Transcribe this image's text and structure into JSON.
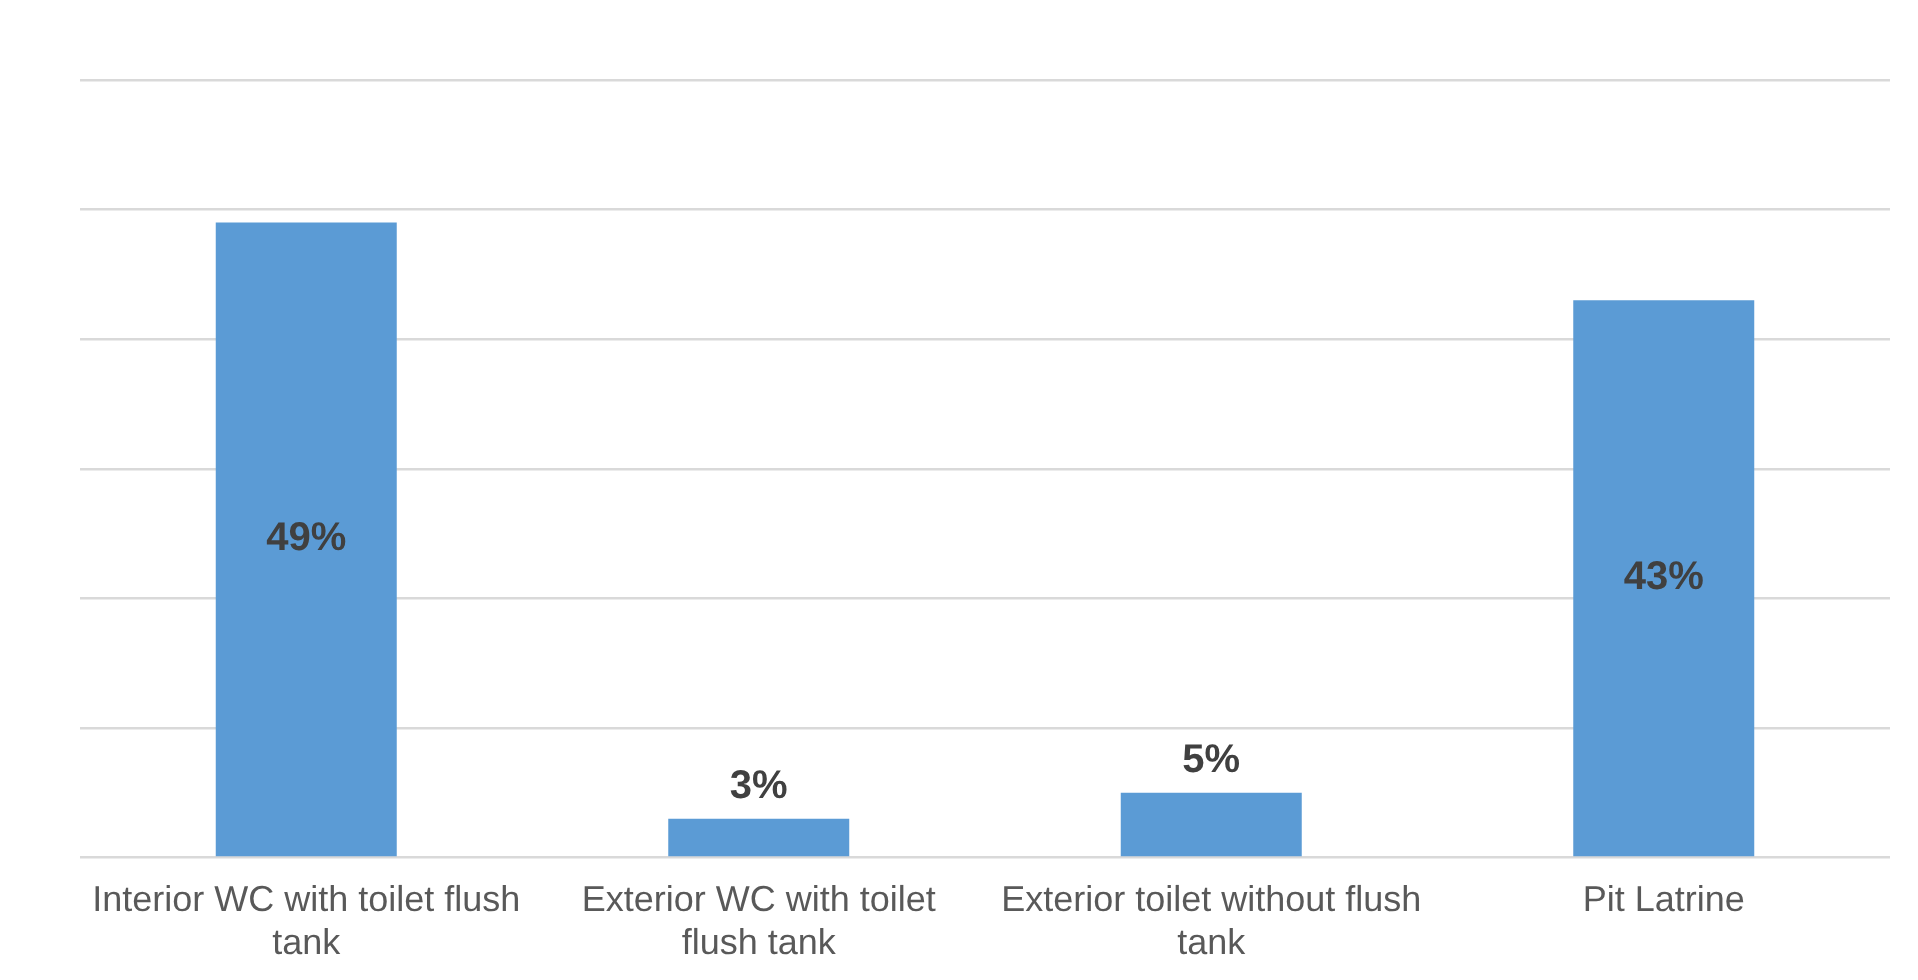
{
  "chart_data": {
    "type": "bar",
    "categories": [
      "Interior WC with toilet flush tank",
      "Exterior WC with toilet flush tank",
      "Exterior toilet without flush tank",
      "Pit Latrine"
    ],
    "values": [
      49,
      3,
      5,
      43
    ],
    "value_labels": [
      "49%",
      "3%",
      "5%",
      "43%"
    ],
    "color": "#5b9bd5",
    "ylim": [
      0,
      60
    ],
    "yticks": [
      {
        "value": 0,
        "label": null
      },
      {
        "value": 10,
        "label": null
      },
      {
        "value": 20,
        "label": null
      },
      {
        "value": 30,
        "label": null
      },
      {
        "value": 40,
        "label": null
      },
      {
        "value": 50,
        "label": null
      },
      {
        "value": 60,
        "label": null
      }
    ],
    "tick_labels": "x",
    "grid": "y",
    "legend": false
  }
}
